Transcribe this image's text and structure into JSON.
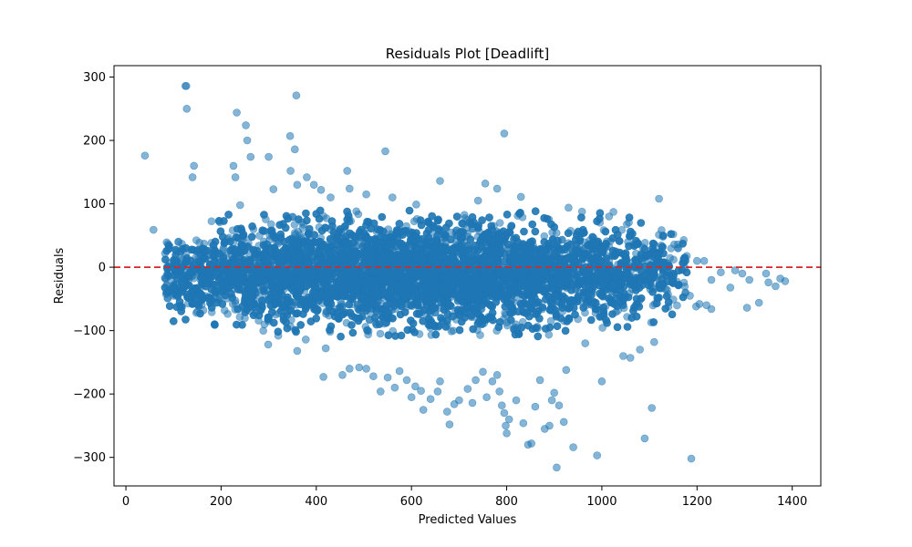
{
  "chart_data": {
    "type": "scatter",
    "title": "Residuals Plot [Deadlift]",
    "xlabel": "Predicted Values",
    "ylabel": "Residuals",
    "xlim": [
      -25,
      1460
    ],
    "ylim": [
      -345,
      318
    ],
    "xticks": [
      0,
      200,
      400,
      600,
      800,
      1000,
      1200,
      1400
    ],
    "yticks": [
      -300,
      -200,
      -100,
      0,
      100,
      200,
      300
    ],
    "grid": false,
    "legend": "none",
    "point_color": "#1f77b4",
    "point_alpha": 0.55,
    "reference_line": {
      "y": 0,
      "color": "#d62728",
      "style": "dashed"
    },
    "core_band": {
      "x_range": [
        100,
        1140
      ],
      "x_max_points": [
        [
          40,
          176
        ],
        [
          58,
          59
        ],
        [
          41,
          176
        ]
      ],
      "description_count": 0
    },
    "series": [
      {
        "values": [
          [
            40,
            176
          ],
          [
            58,
            59
          ],
          [
            82,
            -17
          ],
          [
            85,
            -40
          ],
          [
            95,
            -20
          ],
          [
            100,
            -45
          ],
          [
            125,
            286
          ],
          [
            127,
            286
          ],
          [
            128,
            250
          ],
          [
            140,
            142
          ],
          [
            143,
            160
          ],
          [
            148,
            -72
          ],
          [
            226,
            160
          ],
          [
            230,
            142
          ],
          [
            233,
            244
          ],
          [
            240,
            98
          ],
          [
            252,
            224
          ],
          [
            255,
            200
          ],
          [
            262,
            174
          ],
          [
            300,
            174
          ],
          [
            310,
            123
          ],
          [
            345,
            207
          ],
          [
            358,
            271
          ],
          [
            355,
            186
          ],
          [
            346,
            152
          ],
          [
            360,
            130
          ],
          [
            380,
            142
          ],
          [
            395,
            130
          ],
          [
            410,
            122
          ],
          [
            430,
            110
          ],
          [
            465,
            152
          ],
          [
            470,
            124
          ],
          [
            505,
            115
          ],
          [
            545,
            183
          ],
          [
            560,
            110
          ],
          [
            610,
            99
          ],
          [
            660,
            136
          ],
          [
            740,
            105
          ],
          [
            755,
            132
          ],
          [
            780,
            124
          ],
          [
            795,
            211
          ],
          [
            830,
            111
          ],
          [
            930,
            94
          ],
          [
            1015,
            80
          ],
          [
            1055,
            40
          ],
          [
            1120,
            108
          ],
          [
            1150,
            52
          ],
          [
            1160,
            36
          ],
          [
            1175,
            10
          ],
          [
            1200,
            10
          ],
          [
            1215,
            10
          ],
          [
            1230,
            -20
          ],
          [
            1250,
            -8
          ],
          [
            1270,
            -32
          ],
          [
            1280,
            -5
          ],
          [
            1295,
            -10
          ],
          [
            1305,
            -64
          ],
          [
            1310,
            -20
          ],
          [
            1330,
            -56
          ],
          [
            1345,
            -10
          ],
          [
            1350,
            -24
          ],
          [
            1365,
            -30
          ],
          [
            1375,
            -18
          ],
          [
            1385,
            -22
          ],
          [
            1198,
            -62
          ],
          [
            1205,
            -58
          ],
          [
            1185,
            -45
          ],
          [
            1220,
            -60
          ],
          [
            1230,
            -66
          ],
          [
            299,
            -122
          ],
          [
            320,
            -108
          ],
          [
            378,
            -114
          ],
          [
            360,
            -132
          ],
          [
            420,
            -128
          ],
          [
            415,
            -173
          ],
          [
            455,
            -170
          ],
          [
            470,
            -160
          ],
          [
            490,
            -158
          ],
          [
            505,
            -160
          ],
          [
            520,
            -172
          ],
          [
            535,
            -196
          ],
          [
            550,
            -174
          ],
          [
            565,
            -190
          ],
          [
            575,
            -164
          ],
          [
            590,
            -178
          ],
          [
            600,
            -205
          ],
          [
            608,
            -188
          ],
          [
            620,
            -195
          ],
          [
            625,
            -225
          ],
          [
            640,
            -208
          ],
          [
            655,
            -196
          ],
          [
            660,
            -180
          ],
          [
            675,
            -228
          ],
          [
            680,
            -248
          ],
          [
            690,
            -216
          ],
          [
            700,
            -210
          ],
          [
            718,
            -192
          ],
          [
            728,
            -214
          ],
          [
            735,
            -178
          ],
          [
            750,
            -165
          ],
          [
            758,
            -205
          ],
          [
            770,
            -180
          ],
          [
            780,
            -170
          ],
          [
            785,
            -196
          ],
          [
            790,
            -218
          ],
          [
            795,
            -230
          ],
          [
            798,
            -250
          ],
          [
            800,
            -262
          ],
          [
            805,
            -240
          ],
          [
            820,
            -210
          ],
          [
            835,
            -246
          ],
          [
            845,
            -280
          ],
          [
            852,
            -278
          ],
          [
            860,
            -220
          ],
          [
            870,
            -178
          ],
          [
            880,
            -255
          ],
          [
            890,
            -250
          ],
          [
            895,
            -210
          ],
          [
            900,
            -198
          ],
          [
            905,
            -316
          ],
          [
            910,
            -218
          ],
          [
            920,
            -244
          ],
          [
            925,
            -162
          ],
          [
            940,
            -284
          ],
          [
            965,
            -120
          ],
          [
            990,
            -297
          ],
          [
            1000,
            -180
          ],
          [
            1045,
            -140
          ],
          [
            1060,
            -143
          ],
          [
            1080,
            -130
          ],
          [
            1090,
            -270
          ],
          [
            1105,
            -222
          ],
          [
            1110,
            -118
          ],
          [
            1188,
            -302
          ]
        ]
      }
    ]
  }
}
